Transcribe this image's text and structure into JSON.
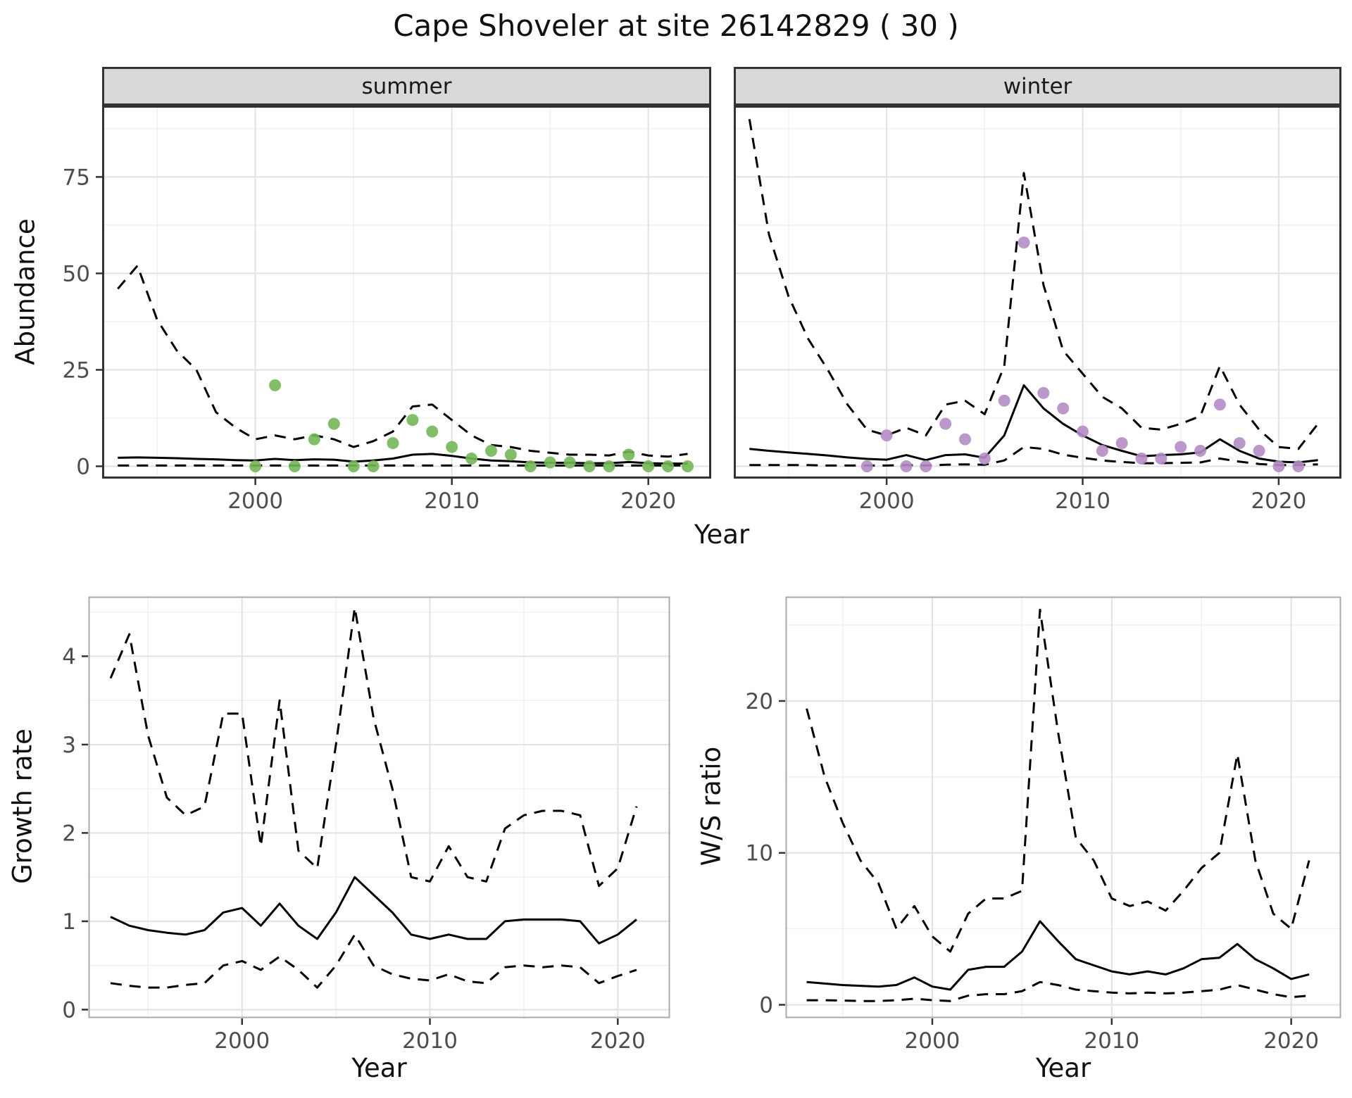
{
  "title": "Cape Shoveler at site 26142829 ( 30 )",
  "style": {
    "panel_bg": "#ffffff",
    "grid_major": "#e2e2e2",
    "grid_minor": "#f0f0f0",
    "line_color": "#000000",
    "dash_pattern": "16,11",
    "tick_color": "#4d4d4d",
    "axis_tick_mark_color": "#333333",
    "strip_bg": "#d9d9d9",
    "border_dark": "#333333",
    "border_light": "#aaaaaa",
    "summer_point_color": "#73b757",
    "winter_point_color": "#b48cc4"
  },
  "chart_data": [
    {
      "id": "abundance-summer",
      "type": "line",
      "facet_label": "summer",
      "xlabel": "Year",
      "ylabel": "Abundance",
      "xlim": [
        1992.2,
        2023.2
      ],
      "ylim": [
        -3.2,
        93.5
      ],
      "xticks": [
        2000,
        2010,
        2020
      ],
      "xtick_labels": [
        "2000",
        "2010",
        "2020"
      ],
      "xminor": [
        1995,
        2005,
        2015
      ],
      "yticks": [
        0,
        25,
        50,
        75
      ],
      "ytick_labels": [
        "0",
        "25",
        "50",
        "75"
      ],
      "yminor": [
        12.5,
        37.5,
        62.5,
        87.5
      ],
      "point_color": "#73b757",
      "fit_x": [
        1993,
        1994,
        1995,
        1996,
        1997,
        1998,
        1999,
        2000,
        2001,
        2002,
        2003,
        2004,
        2005,
        2006,
        2007,
        2008,
        2009,
        2010,
        2011,
        2012,
        2013,
        2014,
        2015,
        2016,
        2017,
        2018,
        2019,
        2020,
        2021,
        2022
      ],
      "median": [
        2.2,
        2.3,
        2.2,
        2.1,
        1.9,
        1.8,
        1.6,
        1.5,
        1.9,
        1.6,
        1.8,
        1.7,
        1.2,
        1.5,
        2.0,
        3.0,
        3.2,
        2.7,
        2.0,
        1.5,
        1.3,
        1.0,
        0.9,
        0.9,
        0.8,
        0.8,
        1.1,
        0.8,
        0.7,
        0.7
      ],
      "upper": [
        46,
        52,
        38,
        30,
        25,
        14,
        10,
        7,
        8,
        7,
        8,
        7,
        5,
        6.5,
        9,
        15.5,
        16,
        12,
        8,
        5.5,
        5,
        4,
        3.5,
        3,
        3,
        2.8,
        3.8,
        2.8,
        2.5,
        3.2
      ],
      "lower": [
        0.2,
        0.2,
        0.2,
        0.2,
        0.2,
        0.2,
        0.2,
        0.2,
        0.2,
        0.2,
        0.2,
        0.2,
        0.2,
        0.2,
        0.2,
        0.2,
        0.2,
        0.2,
        0.2,
        0.2,
        0.2,
        0.2,
        0.2,
        0.2,
        0.2,
        0.2,
        0.2,
        0.2,
        0.2,
        0.2
      ],
      "obs_x": [
        2000,
        2001,
        2002,
        2003,
        2004,
        2005,
        2006,
        2007,
        2008,
        2009,
        2010,
        2011,
        2012,
        2013,
        2014,
        2015,
        2016,
        2017,
        2018,
        2019,
        2020,
        2021,
        2022
      ],
      "obs_y": [
        0,
        21,
        0,
        7,
        11,
        0,
        0,
        6,
        12,
        9,
        5,
        2,
        4,
        3,
        0,
        1,
        1,
        0,
        0,
        3,
        0,
        0,
        0
      ]
    },
    {
      "id": "abundance-winter",
      "type": "line",
      "facet_label": "winter",
      "xlabel": "Year",
      "ylabel": "Abundance",
      "xlim": [
        1992.2,
        2023.2
      ],
      "ylim": [
        -3.2,
        93.5
      ],
      "xticks": [
        2000,
        2010,
        2020
      ],
      "xtick_labels": [
        "2000",
        "2010",
        "2020"
      ],
      "xminor": [
        1995,
        2005,
        2015
      ],
      "yticks": [
        0,
        25,
        50,
        75
      ],
      "ytick_labels": [
        "0",
        "25",
        "50",
        "75"
      ],
      "yminor": [
        12.5,
        37.5,
        62.5,
        87.5
      ],
      "point_color": "#b48cc4",
      "fit_x": [
        1993,
        1994,
        1995,
        1996,
        1997,
        1998,
        1999,
        2000,
        2001,
        2002,
        2003,
        2004,
        2005,
        2006,
        2007,
        2008,
        2009,
        2010,
        2011,
        2012,
        2013,
        2014,
        2015,
        2016,
        2017,
        2018,
        2019,
        2020,
        2021,
        2022
      ],
      "median": [
        4.5,
        4.0,
        3.6,
        3.2,
        2.8,
        2.3,
        1.9,
        1.7,
        2.9,
        1.6,
        2.9,
        3.1,
        2.2,
        8.0,
        21.0,
        15.0,
        11.0,
        8.0,
        5.5,
        4.0,
        2.6,
        2.9,
        3.1,
        3.6,
        7.0,
        4.0,
        2.0,
        1.2,
        1.0,
        1.6
      ],
      "upper": [
        90,
        60,
        44,
        33,
        25,
        16,
        9.5,
        8,
        10,
        8,
        16,
        17,
        13.5,
        26,
        76,
        47,
        30,
        24,
        18,
        15,
        10,
        9.5,
        11,
        13,
        26,
        16,
        9.5,
        5,
        4.5,
        11
      ],
      "lower": [
        0.3,
        0.3,
        0.3,
        0.3,
        0.2,
        0.2,
        0.2,
        0.2,
        0.3,
        0.2,
        0.4,
        0.5,
        0.4,
        1.5,
        5.0,
        4.5,
        3.0,
        2.2,
        1.5,
        1.1,
        0.8,
        0.8,
        0.9,
        1.0,
        2.0,
        1.2,
        0.6,
        0.3,
        0.3,
        0.5
      ],
      "obs_x": [
        1999,
        2000,
        2001,
        2002,
        2003,
        2004,
        2005,
        2006,
        2007,
        2008,
        2009,
        2010,
        2011,
        2012,
        2013,
        2014,
        2015,
        2016,
        2017,
        2018,
        2019,
        2020,
        2021
      ],
      "obs_y": [
        0,
        8,
        0,
        0,
        11,
        7,
        2,
        17,
        58,
        19,
        15,
        9,
        4,
        6,
        2,
        2,
        5,
        4,
        16,
        6,
        4,
        0,
        0
      ]
    },
    {
      "id": "growth-rate",
      "type": "line",
      "xlabel": "Year",
      "ylabel": "Growth rate",
      "xlim": [
        1991.8,
        2022.8
      ],
      "ylim": [
        -0.1,
        4.68
      ],
      "xticks": [
        2000,
        2010,
        2020
      ],
      "xtick_labels": [
        "2000",
        "2010",
        "2020"
      ],
      "xminor": [
        1995,
        2005,
        2015
      ],
      "yticks": [
        0,
        1,
        2,
        3,
        4
      ],
      "ytick_labels": [
        "0",
        "1",
        "2",
        "3",
        "4"
      ],
      "yminor": [
        0.5,
        1.5,
        2.5,
        3.5,
        4.5
      ],
      "fit_x": [
        1993,
        1994,
        1995,
        1996,
        1997,
        1998,
        1999,
        2000,
        2001,
        2002,
        2003,
        2004,
        2005,
        2006,
        2007,
        2008,
        2009,
        2010,
        2011,
        2012,
        2013,
        2014,
        2015,
        2016,
        2017,
        2018,
        2019,
        2020,
        2021
      ],
      "median": [
        1.05,
        0.95,
        0.9,
        0.87,
        0.85,
        0.9,
        1.1,
        1.15,
        0.95,
        1.2,
        0.95,
        0.8,
        1.1,
        1.5,
        1.3,
        1.1,
        0.85,
        0.8,
        0.85,
        0.8,
        0.8,
        1.0,
        1.02,
        1.02,
        1.02,
        1.0,
        0.75,
        0.85,
        1.02
      ],
      "upper": [
        3.75,
        4.25,
        3.1,
        2.4,
        2.2,
        2.3,
        3.35,
        3.35,
        1.85,
        3.5,
        1.8,
        1.6,
        3.0,
        4.55,
        3.3,
        2.5,
        1.5,
        1.45,
        1.85,
        1.5,
        1.45,
        2.05,
        2.2,
        2.25,
        2.25,
        2.2,
        1.4,
        1.6,
        2.3
      ],
      "lower": [
        0.3,
        0.27,
        0.25,
        0.25,
        0.28,
        0.3,
        0.5,
        0.55,
        0.45,
        0.6,
        0.45,
        0.25,
        0.5,
        0.85,
        0.5,
        0.4,
        0.35,
        0.33,
        0.4,
        0.32,
        0.3,
        0.48,
        0.5,
        0.48,
        0.5,
        0.48,
        0.3,
        0.38,
        0.45
      ]
    },
    {
      "id": "ws-ratio",
      "type": "line",
      "xlabel": "Year",
      "ylabel": "W/S ratio",
      "xlim": [
        1991.8,
        2022.8
      ],
      "ylim": [
        -0.9,
        26.9
      ],
      "xticks": [
        2000,
        2010,
        2020
      ],
      "xtick_labels": [
        "2000",
        "2010",
        "2020"
      ],
      "xminor": [
        1995,
        2005,
        2015
      ],
      "yticks": [
        0,
        10,
        20
      ],
      "ytick_labels": [
        "0",
        "10",
        "20"
      ],
      "yminor": [
        5,
        15,
        25
      ],
      "fit_x": [
        1993,
        1994,
        1995,
        1996,
        1997,
        1998,
        1999,
        2000,
        2001,
        2002,
        2003,
        2004,
        2005,
        2006,
        2007,
        2008,
        2009,
        2010,
        2011,
        2012,
        2013,
        2014,
        2015,
        2016,
        2017,
        2018,
        2019,
        2020,
        2021
      ],
      "median": [
        1.5,
        1.4,
        1.3,
        1.25,
        1.2,
        1.3,
        1.8,
        1.2,
        1.0,
        2.3,
        2.5,
        2.5,
        3.5,
        5.5,
        4.2,
        3.0,
        2.6,
        2.2,
        2.0,
        2.2,
        2.0,
        2.4,
        3.0,
        3.1,
        4.0,
        3.0,
        2.4,
        1.7,
        2.0
      ],
      "upper": [
        19.5,
        15,
        12,
        9.5,
        8,
        5,
        6.5,
        4.5,
        3.5,
        6,
        7,
        7,
        7.5,
        26,
        18,
        11,
        9.5,
        7,
        6.5,
        6.8,
        6.2,
        7.5,
        9,
        10,
        16.5,
        9.5,
        6,
        5,
        9.5
      ],
      "lower": [
        0.3,
        0.3,
        0.28,
        0.25,
        0.25,
        0.3,
        0.4,
        0.3,
        0.25,
        0.6,
        0.7,
        0.7,
        0.9,
        1.5,
        1.3,
        1.0,
        0.9,
        0.8,
        0.75,
        0.8,
        0.75,
        0.8,
        0.9,
        1.0,
        1.3,
        1.0,
        0.7,
        0.5,
        0.6
      ]
    }
  ]
}
